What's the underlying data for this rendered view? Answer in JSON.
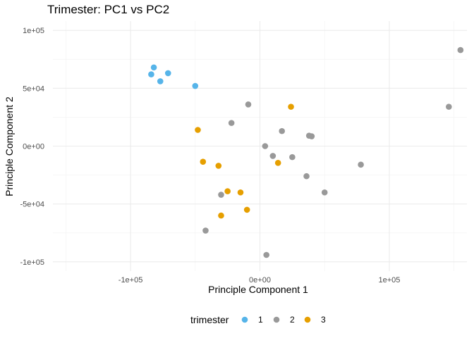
{
  "chart_data": {
    "type": "scatter",
    "title": "Trimester: PC1 vs PC2",
    "xlabel": "Principle Component 1",
    "ylabel": "Principle Component 2",
    "xlim": [
      -160000,
      160000
    ],
    "ylim": [
      -108000,
      108000
    ],
    "x_ticks": [
      {
        "value": -100000,
        "label": "-1e+05"
      },
      {
        "value": 0,
        "label": "0e+00"
      },
      {
        "value": 100000,
        "label": "1e+05"
      }
    ],
    "y_ticks": [
      {
        "value": 100000,
        "label": "1e+05"
      },
      {
        "value": 50000,
        "label": "5e+04"
      },
      {
        "value": 0,
        "label": "0e+00"
      },
      {
        "value": -50000,
        "label": "-5e+04"
      },
      {
        "value": -100000,
        "label": "-1e+05"
      }
    ],
    "grid": true,
    "legend": {
      "title": "trimester",
      "position": "bottom"
    },
    "series": [
      {
        "name": "1",
        "color": "#56B4E9",
        "points": [
          {
            "x": -82000,
            "y": 68000
          },
          {
            "x": -84000,
            "y": 62000
          },
          {
            "x": -71000,
            "y": 63000
          },
          {
            "x": -77000,
            "y": 56000
          },
          {
            "x": -50000,
            "y": 52000
          }
        ]
      },
      {
        "name": "2",
        "color": "#999999",
        "points": [
          {
            "x": 155000,
            "y": 83000
          },
          {
            "x": 146000,
            "y": 34000
          },
          {
            "x": -9000,
            "y": 36000
          },
          {
            "x": -22000,
            "y": 20000
          },
          {
            "x": 17000,
            "y": 13000
          },
          {
            "x": 38000,
            "y": 9000
          },
          {
            "x": 40000,
            "y": 8500
          },
          {
            "x": 4000,
            "y": 0
          },
          {
            "x": 10000,
            "y": -8500
          },
          {
            "x": 25000,
            "y": -9500
          },
          {
            "x": 78000,
            "y": -16000
          },
          {
            "x": 36000,
            "y": -26000
          },
          {
            "x": 50000,
            "y": -40000
          },
          {
            "x": -30000,
            "y": -42000
          },
          {
            "x": -42000,
            "y": -73000
          },
          {
            "x": 5000,
            "y": -94000
          }
        ]
      },
      {
        "name": "3",
        "color": "#E69F00",
        "points": [
          {
            "x": 24000,
            "y": 34000
          },
          {
            "x": -48000,
            "y": 14000
          },
          {
            "x": -44000,
            "y": -13500
          },
          {
            "x": -32000,
            "y": -17000
          },
          {
            "x": 14000,
            "y": -14500
          },
          {
            "x": -25000,
            "y": -39000
          },
          {
            "x": -15000,
            "y": -40000
          },
          {
            "x": -30000,
            "y": -60000
          },
          {
            "x": -10000,
            "y": -55000
          }
        ]
      }
    ]
  }
}
